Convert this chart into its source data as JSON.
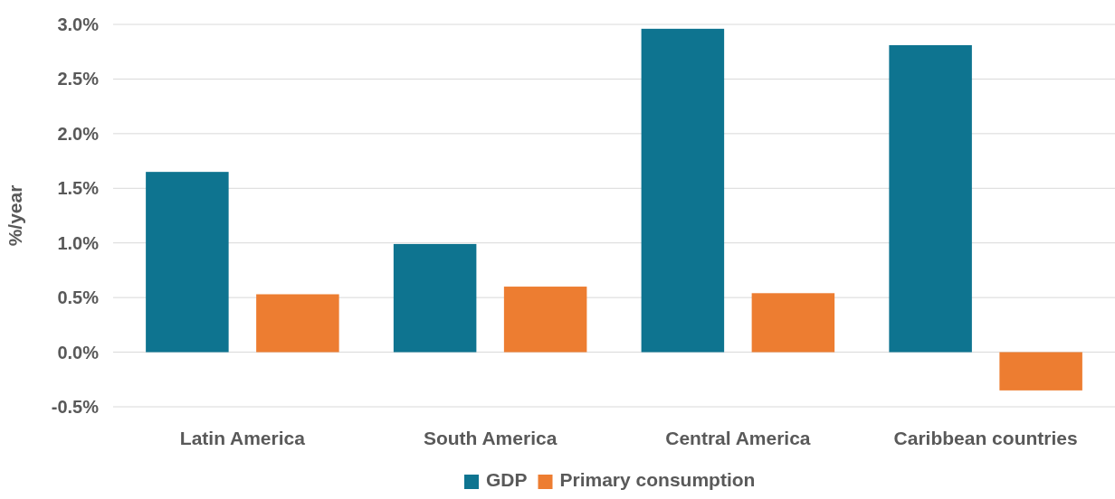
{
  "chart_data": {
    "type": "bar",
    "ylabel": "%/year",
    "categories": [
      "Latin America",
      "South America",
      "Central America",
      "Caribbean countries"
    ],
    "series": [
      {
        "name": "GDP",
        "color": "#0e7490",
        "values": [
          1.65,
          0.99,
          2.96,
          2.81
        ]
      },
      {
        "name": "Primary consumption",
        "color": "#ed7d31",
        "values": [
          0.53,
          0.6,
          0.54,
          -0.35
        ]
      }
    ],
    "ylim": [
      -0.5,
      3.0
    ],
    "yticks": [
      {
        "value": -0.5,
        "label": "-0.5%"
      },
      {
        "value": 0,
        "label": "0.0%"
      },
      {
        "value": 0.5,
        "label": "0.5%"
      },
      {
        "value": 1,
        "label": "1.0%"
      },
      {
        "value": 1.5,
        "label": "1.5%"
      },
      {
        "value": 2,
        "label": "2.0%"
      },
      {
        "value": 2.5,
        "label": "2.5%"
      },
      {
        "value": 3,
        "label": "3.0%"
      }
    ],
    "grid": "y",
    "legend": "bottom"
  }
}
